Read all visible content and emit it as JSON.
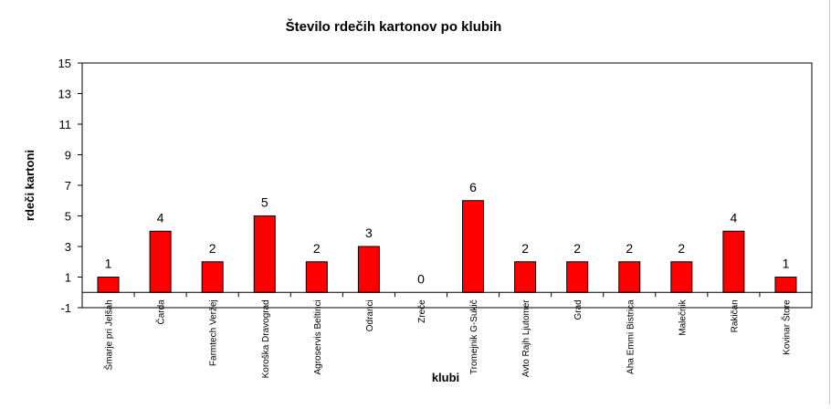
{
  "chart_data": {
    "type": "bar",
    "title": "Število rdečih kartonov po klubih",
    "xlabel": "klubi",
    "ylabel": "rdeči kartoni",
    "ylim": [
      -1,
      15
    ],
    "yticks": [
      "15",
      "13",
      "11",
      "9",
      "7",
      "5",
      "3",
      "1",
      "-1"
    ],
    "categories": [
      "Šmarje pri Jelšah",
      "Čarda",
      "Farmtech Veržej",
      "Koroška Dravograd",
      "Agroservis Beltinci",
      "Odranci",
      "Zreče",
      "Tromejnik G-Sukič",
      "Avto Rajh Ljutomer",
      "Grad",
      "Aha Emmi Bistrica",
      "Malečnik",
      "Rakičan",
      "Kovinar Štore"
    ],
    "values": [
      1,
      4,
      2,
      5,
      2,
      3,
      0,
      6,
      2,
      2,
      2,
      2,
      4,
      1
    ],
    "data_labels": [
      "1",
      "4",
      "2",
      "5",
      "2",
      "3",
      "0",
      "6",
      "2",
      "2",
      "2",
      "2",
      "4",
      "1"
    ],
    "bar_color": "#ff0000",
    "bar_edge_color": "#000000",
    "grid": false,
    "legend": "none"
  }
}
